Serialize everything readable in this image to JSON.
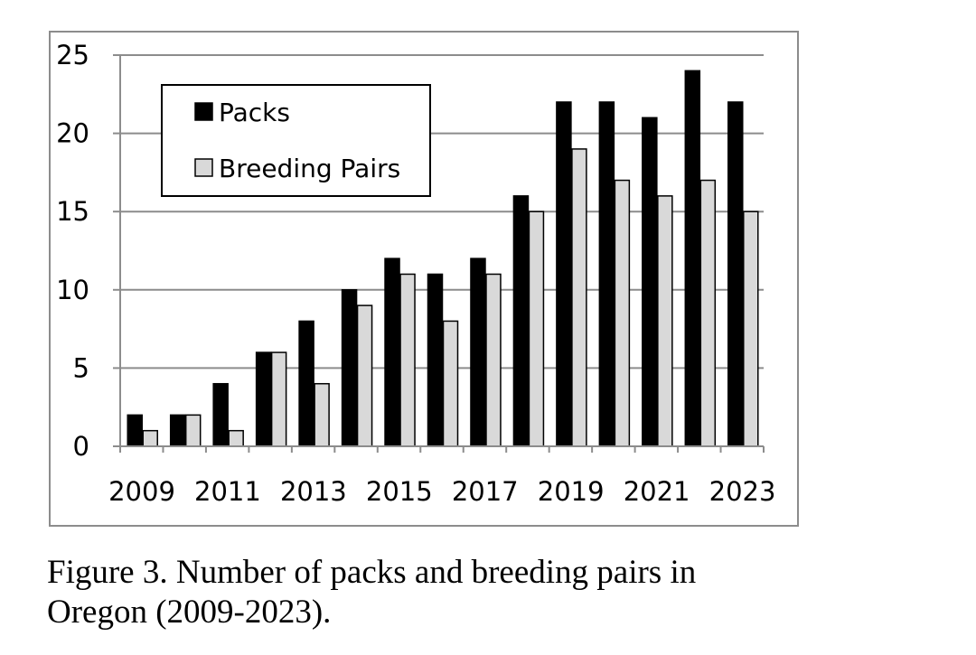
{
  "caption": {
    "line1": "Figure 3. Number of packs and breeding pairs in",
    "line2": "Oregon (2009-2023)."
  },
  "colors": {
    "packs": "#000000",
    "breeding_pairs": "#d9d9d9",
    "gridline": "#8c8c8c",
    "axis": "#8c8c8c",
    "frame": "#8c8c8c"
  },
  "chart_data": {
    "type": "bar",
    "title": "",
    "xlabel": "",
    "ylabel": "",
    "categories": [
      "2009",
      "2010",
      "2011",
      "2012",
      "2013",
      "2014",
      "2015",
      "2016",
      "2017",
      "2018",
      "2019",
      "2020",
      "2021",
      "2022",
      "2023"
    ],
    "x_tick_labels": [
      "2009",
      "2011",
      "2013",
      "2015",
      "2017",
      "2019",
      "2021",
      "2023"
    ],
    "y_ticks": [
      0,
      5,
      10,
      15,
      20,
      25
    ],
    "ylim": [
      0,
      25
    ],
    "grid": "horizontal",
    "legend_position": "top-left",
    "series": [
      {
        "name": "Packs",
        "color_key": "packs",
        "values": [
          2,
          2,
          4,
          6,
          8,
          10,
          12,
          11,
          12,
          16,
          22,
          22,
          21,
          24,
          22
        ]
      },
      {
        "name": "Breeding Pairs",
        "color_key": "breeding_pairs",
        "values": [
          1,
          2,
          1,
          6,
          4,
          9,
          11,
          8,
          11,
          15,
          19,
          17,
          16,
          17,
          15
        ]
      }
    ]
  }
}
